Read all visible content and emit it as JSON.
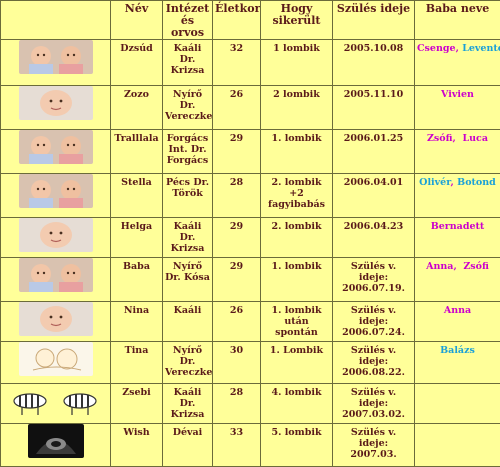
{
  "headers": {
    "name": "Név",
    "clinic": "Intézet és orvos",
    "age": "Életkor",
    "outcome": "Hogy sikerült",
    "due": "Szülés ideje",
    "baby_names": "Baba neve"
  },
  "rows": [
    {
      "photo": "twin-babies-photo",
      "name": "Dzsúd",
      "clinic": "Kaáli Dr. Krizsa",
      "age": "32",
      "outcome": "1 lombik",
      "due": "2005.10.08",
      "babies": [
        {
          "name": "Csenge",
          "sep": ", ",
          "color": "girl"
        },
        {
          "name": "Levente",
          "sep": "",
          "color": "boy"
        }
      ]
    },
    {
      "photo": "baby-photo",
      "name": "Zozo",
      "clinic": "Nyírő Dr. Vereczkey",
      "age": "26",
      "outcome": "2 lombik",
      "due": "2005.11.10",
      "babies": [
        {
          "name": "Vivien",
          "sep": "",
          "color": "girl"
        }
      ]
    },
    {
      "photo": "twin-babies-photo",
      "name": "Tralllala",
      "clinic": "Forgács Int. Dr. Forgács",
      "age": "29",
      "outcome": "1. lombik",
      "due": "2006.01.25",
      "babies": [
        {
          "name": "Zsófi",
          "sep": ",  ",
          "color": "girl"
        },
        {
          "name": "Luca",
          "sep": "",
          "color": "girl"
        }
      ]
    },
    {
      "photo": "twin-babies-photo",
      "name": "Stella",
      "clinic": "Pécs Dr. Török",
      "age": "28",
      "outcome": "2. lombik +2 fagyibabás",
      "due": "2006.04.01",
      "babies": [
        {
          "name": "Olivér",
          "sep": ", ",
          "color": "boy"
        },
        {
          "name": "Botond",
          "sep": "",
          "color": "boy"
        }
      ]
    },
    {
      "photo": "baby-photo",
      "name": "Helga",
      "clinic": "Kaáli Dr. Krizsa",
      "age": "29",
      "outcome": "2. lombik",
      "due": "2006.04.23",
      "babies": [
        {
          "name": "Bernadett",
          "sep": "",
          "color": "girl"
        }
      ]
    },
    {
      "photo": "twin-babies-photo",
      "name": "Baba",
      "clinic": "Nyírő Dr. Kósa",
      "age": "29",
      "outcome": "1. lombik",
      "due": "Szülés v. ideje: 2006.07.19.",
      "babies": [
        {
          "name": "Anna",
          "sep": ",  ",
          "color": "girl"
        },
        {
          "name": "Zsófi",
          "sep": "",
          "color": "girl"
        }
      ]
    },
    {
      "photo": "baby-photo",
      "name": "Nina",
      "clinic": "Kaáli",
      "age": "26",
      "outcome": "1. lombik után spontán",
      "due": "Szülés v. ideje: 2006.07.24.",
      "babies": [
        {
          "name": "Anna",
          "sep": "",
          "color": "girl"
        }
      ]
    },
    {
      "photo": "baby-drawing",
      "name": "Tina",
      "clinic": "Nyírő Dr. Vereczkey",
      "age": "30",
      "outcome": "1. Lombik",
      "due": "Szülés v. ideje: 2006.08.22.",
      "babies": [
        {
          "name": "Balázs",
          "sep": "",
          "color": "boy"
        }
      ]
    },
    {
      "photo": "zebras-picture",
      "name": "Zsebi",
      "clinic": "Kaáli Dr. Krizsa",
      "age": "28",
      "outcome": "4. lombik",
      "due": "Szülés v. ideje: 2007.03.02.",
      "babies": []
    },
    {
      "photo": "ultrasound-image",
      "name": "Wish",
      "clinic": "Dévai",
      "age": "33",
      "outcome": "5. lombik",
      "due": "Szülés v. ideje: 2007.03.",
      "babies": []
    }
  ]
}
